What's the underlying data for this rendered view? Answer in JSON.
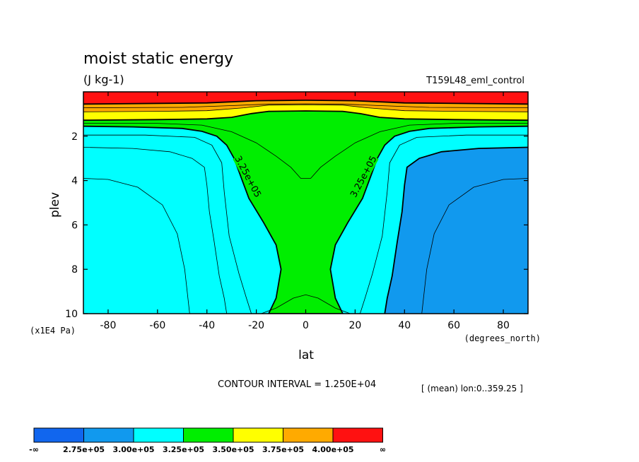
{
  "chart_data": {
    "type": "contour",
    "title": "moist static energy",
    "units": "(J kg-1)",
    "run_label": "T159L48_eml_control",
    "xlabel": "lat",
    "xunits": "(degrees_north)",
    "ylabel": "plev",
    "yunits": "(x1E4 Pa)",
    "xlim": [
      -90,
      90
    ],
    "ylim": [
      10,
      0
    ],
    "x_ticks": [
      -80,
      -60,
      -40,
      -20,
      0,
      20,
      40,
      60,
      80
    ],
    "y_ticks": [
      2,
      4,
      6,
      8,
      10
    ],
    "contour_interval_text": "CONTOUR INTERVAL = 1.250E+04",
    "mean_text": "[ (mean) lon:0..359.25 ]",
    "contour_labels": [
      "3.25e+05",
      "3.25e+05"
    ],
    "levels": [
      275000,
      300000,
      325000,
      350000,
      375000,
      400000
    ],
    "colorbar": {
      "labels": [
        "-∞",
        "2.75e+05",
        "3.00e+05",
        "3.25e+05",
        "3.50e+05",
        "3.75e+05",
        "4.00e+05",
        "∞"
      ],
      "colors": [
        "#1166ee",
        "#1199ee",
        "#00ffff",
        "#00ee00",
        "#ffff00",
        "#ffaa00",
        "#ff1111"
      ]
    },
    "regions": {
      "300000": [
        [
          -90,
          10
        ],
        [
          -90,
          2.5
        ],
        [
          -70,
          2.55
        ],
        [
          -55,
          2.7
        ],
        [
          -46,
          3.0
        ],
        [
          -41,
          3.4
        ],
        [
          -40,
          4.2
        ],
        [
          -39,
          5.4
        ],
        [
          -37,
          6.8
        ],
        [
          -35,
          8.3
        ],
        [
          -33,
          9.3
        ],
        [
          -32,
          10
        ]
      ],
      "325000": [
        [
          -90,
          10
        ],
        [
          -90,
          1.55
        ],
        [
          -70,
          1.58
        ],
        [
          -50,
          1.65
        ],
        [
          -42,
          1.78
        ],
        [
          -36,
          2.0
        ],
        [
          -32,
          2.4
        ],
        [
          -29,
          3.0
        ],
        [
          -26,
          3.9
        ],
        [
          -23,
          4.8
        ],
        [
          -17,
          5.9
        ],
        [
          -12,
          6.9
        ],
        [
          -10,
          8.0
        ],
        [
          -12,
          9.3
        ],
        [
          -15,
          10
        ],
        [
          15,
          10
        ],
        [
          12,
          9.3
        ],
        [
          10,
          8.0
        ],
        [
          12,
          6.9
        ],
        [
          17,
          5.9
        ],
        [
          23,
          4.8
        ],
        [
          26,
          3.9
        ],
        [
          29,
          3.0
        ],
        [
          32,
          2.4
        ],
        [
          36,
          2.0
        ],
        [
          42,
          1.78
        ],
        [
          50,
          1.65
        ],
        [
          70,
          1.58
        ],
        [
          90,
          1.55
        ],
        [
          90,
          10
        ]
      ],
      "350000": [
        [
          -90,
          1.28
        ],
        [
          -60,
          1.25
        ],
        [
          -40,
          1.22
        ],
        [
          -30,
          1.15
        ],
        [
          -22,
          0.98
        ],
        [
          -15,
          0.88
        ],
        [
          0,
          0.86
        ],
        [
          15,
          0.88
        ],
        [
          22,
          0.98
        ],
        [
          30,
          1.15
        ],
        [
          40,
          1.22
        ],
        [
          60,
          1.25
        ],
        [
          90,
          1.28
        ],
        [
          90,
          0
        ],
        [
          -90,
          0
        ]
      ],
      "375000": [
        [
          -90,
          0.9
        ],
        [
          -60,
          0.88
        ],
        [
          -40,
          0.85
        ],
        [
          -25,
          0.72
        ],
        [
          -15,
          0.6
        ],
        [
          0,
          0.58
        ],
        [
          15,
          0.6
        ],
        [
          25,
          0.72
        ],
        [
          40,
          0.85
        ],
        [
          60,
          0.88
        ],
        [
          90,
          0.9
        ],
        [
          90,
          0
        ],
        [
          -90,
          0
        ]
      ],
      "400000": [
        [
          -90,
          0.55
        ],
        [
          -40,
          0.5
        ],
        [
          -20,
          0.4
        ],
        [
          0,
          0.38
        ],
        [
          20,
          0.4
        ],
        [
          40,
          0.5
        ],
        [
          90,
          0.55
        ],
        [
          90,
          0
        ],
        [
          -90,
          0
        ]
      ],
      "425000": [
        [
          -90,
          0.25
        ],
        [
          90,
          0.25
        ],
        [
          90,
          0
        ],
        [
          -90,
          0
        ]
      ]
    },
    "contour_lines": {
      "287500": [
        [
          -90,
          3.9
        ],
        [
          -80,
          3.95
        ],
        [
          -68,
          4.3
        ],
        [
          -58,
          5.1
        ],
        [
          -52,
          6.4
        ],
        [
          -49,
          8.0
        ],
        [
          -47,
          10
        ]
      ],
      "312500": [
        [
          -90,
          1.95
        ],
        [
          -65,
          1.95
        ],
        [
          -45,
          2.05
        ],
        [
          -38,
          2.4
        ],
        [
          -34,
          3.2
        ],
        [
          -33,
          4.5
        ],
        [
          -31,
          6.5
        ],
        [
          -27,
          8.2
        ],
        [
          -24,
          9.3
        ],
        [
          -22,
          10
        ]
      ],
      "337500": [
        [
          -90,
          1.42
        ],
        [
          -60,
          1.42
        ],
        [
          -42,
          1.5
        ],
        [
          -30,
          1.8
        ],
        [
          -20,
          2.3
        ],
        [
          -12,
          2.9
        ],
        [
          -6,
          3.4
        ],
        [
          -2,
          3.9
        ],
        [
          0,
          3.9
        ],
        [
          2,
          3.9
        ],
        [
          6,
          3.4
        ],
        [
          12,
          2.9
        ],
        [
          20,
          2.3
        ],
        [
          30,
          1.8
        ],
        [
          42,
          1.5
        ],
        [
          60,
          1.42
        ],
        [
          90,
          1.42
        ]
      ],
      "337500b": [
        [
          -18,
          10
        ],
        [
          -12,
          9.75
        ],
        [
          -5,
          9.3
        ],
        [
          0,
          9.15
        ],
        [
          5,
          9.3
        ],
        [
          12,
          9.75
        ],
        [
          18,
          10
        ]
      ],
      "362500": [
        [
          -90,
          0.72
        ],
        [
          -50,
          0.7
        ],
        [
          -30,
          0.62
        ],
        [
          -15,
          0.55
        ],
        [
          0,
          0.54
        ],
        [
          15,
          0.55
        ],
        [
          30,
          0.62
        ],
        [
          50,
          0.7
        ],
        [
          90,
          0.72
        ]
      ]
    }
  }
}
